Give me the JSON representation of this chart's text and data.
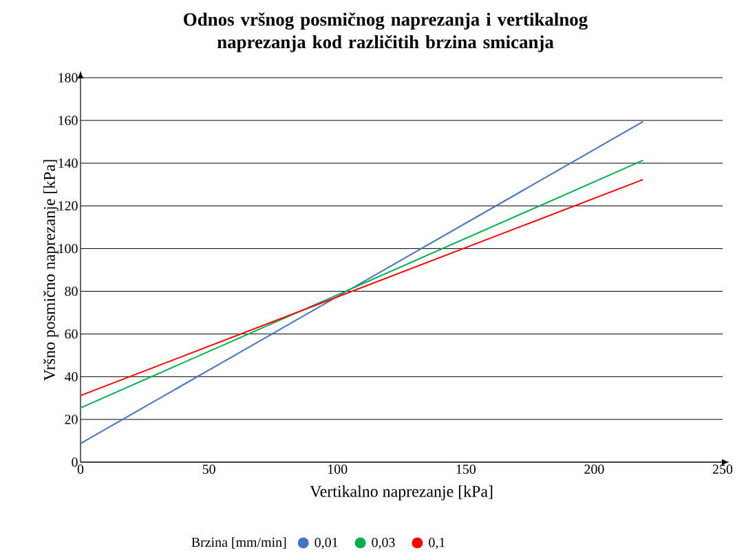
{
  "chart_data": {
    "type": "line",
    "title": "Odnos vršnog posmičnog naprezanja i vertikalnog naprezanja kod različitih brzina smicanja",
    "xlabel": "Vertikalno naprezanje [kPa]",
    "ylabel": "Vršno posmično naprezanje [kPa]",
    "legend_title": "Brzina [mm/min]",
    "x": [
      0,
      219
    ],
    "series": [
      {
        "name": "0,01",
        "color": "#4472c4",
        "values": [
          8.7,
          159.4
        ]
      },
      {
        "name": "0,03",
        "color": "#00b050",
        "values": [
          25.4,
          141.3
        ]
      },
      {
        "name": "0,1",
        "color": "#ff0000",
        "values": [
          31.2,
          132.3
        ]
      }
    ],
    "xlim": [
      0,
      250
    ],
    "ylim": [
      0,
      180
    ],
    "xticks": [
      0,
      50,
      100,
      150,
      200,
      250
    ],
    "yticks": [
      0,
      20,
      40,
      60,
      80,
      100,
      120,
      140,
      160,
      180
    ],
    "grid": "y",
    "legend": "bottom"
  }
}
